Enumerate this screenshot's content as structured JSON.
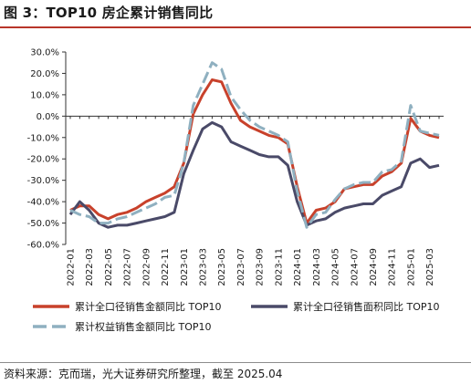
{
  "title": "图 3：TOP10 房企累计销售同比",
  "source": "资料来源：克而瑞，光大证券研究所整理，截至 2025.04",
  "chart_data": {
    "type": "line",
    "y_ticks": [
      "30.0%",
      "20.0%",
      "10.0%",
      "0.0%",
      "-10.0%",
      "-20.0%",
      "-30.0%",
      "-40.0%",
      "-50.0%",
      "-60.0%"
    ],
    "ylim": [
      -60,
      30
    ],
    "x_ticks": [
      "2022-01",
      "2022-03",
      "2022-05",
      "2022-07",
      "2022-09",
      "2022-11",
      "2023-01",
      "2023-03",
      "2023-05",
      "2023-07",
      "2023-09",
      "2023-11",
      "2024-01",
      "2024-03",
      "2024-05",
      "2024-07",
      "2024-09",
      "2024-11",
      "2025-01",
      "2025-03"
    ],
    "x": [
      "2022-01",
      "2022-02",
      "2022-03",
      "2022-04",
      "2022-05",
      "2022-06",
      "2022-07",
      "2022-08",
      "2022-09",
      "2022-10",
      "2022-11",
      "2022-12",
      "2023-01",
      "2023-02",
      "2023-03",
      "2023-04",
      "2023-05",
      "2023-06",
      "2023-07",
      "2023-08",
      "2023-09",
      "2023-10",
      "2023-11",
      "2023-12",
      "2024-01",
      "2024-02",
      "2024-03",
      "2024-04",
      "2024-05",
      "2024-06",
      "2024-07",
      "2024-08",
      "2024-09",
      "2024-10",
      "2024-11",
      "2024-12",
      "2025-01",
      "2025-02",
      "2025-03",
      "2025-04"
    ],
    "series": [
      {
        "name": "累计全口径销售金额同比 TOP10",
        "color": "#c8412b",
        "dash": "solid",
        "values": [
          -44,
          -42,
          -42,
          -46,
          -48,
          -46,
          -45,
          -43,
          -40,
          -38,
          -36,
          -33,
          -22,
          1,
          10,
          17,
          16,
          6,
          -2,
          -5,
          -7,
          -9,
          -10,
          -13,
          -33,
          -50,
          -44,
          -43,
          -40,
          -34,
          -33,
          -32,
          -32,
          -28,
          -26,
          -22,
          -1,
          -7,
          -9,
          -10
        ]
      },
      {
        "name": "累计全口径销售面积同比 TOP10",
        "color": "#4a4a68",
        "dash": "solid",
        "values": [
          -46,
          -40,
          -44,
          -50,
          -52,
          -51,
          -51,
          -50,
          -49,
          -48,
          -47,
          -45,
          -27,
          -16,
          -6,
          -3,
          -5,
          -12,
          -14,
          -16,
          -18,
          -19,
          -19,
          -23,
          -40,
          -51,
          -49,
          -48,
          -45,
          -43,
          -42,
          -41,
          -41,
          -37,
          -35,
          -33,
          -22,
          -20,
          -24,
          -23
        ]
      },
      {
        "name": "累计权益销售金额同比 TOP10",
        "color": "#8fb0c0",
        "dash": "dashed",
        "values": [
          -44,
          -46,
          -47,
          -50,
          -50,
          -48,
          -47,
          -45,
          -43,
          -41,
          -38,
          -37,
          -22,
          5,
          15,
          25,
          22,
          9,
          3,
          -2,
          -5,
          -7,
          -9,
          -12,
          -35,
          -52,
          -46,
          -45,
          -39,
          -34,
          -32,
          -31,
          -31,
          -26,
          -25,
          -21,
          5,
          -7,
          -8,
          -9
        ]
      }
    ],
    "legend_position": "bottom",
    "grid": false
  }
}
